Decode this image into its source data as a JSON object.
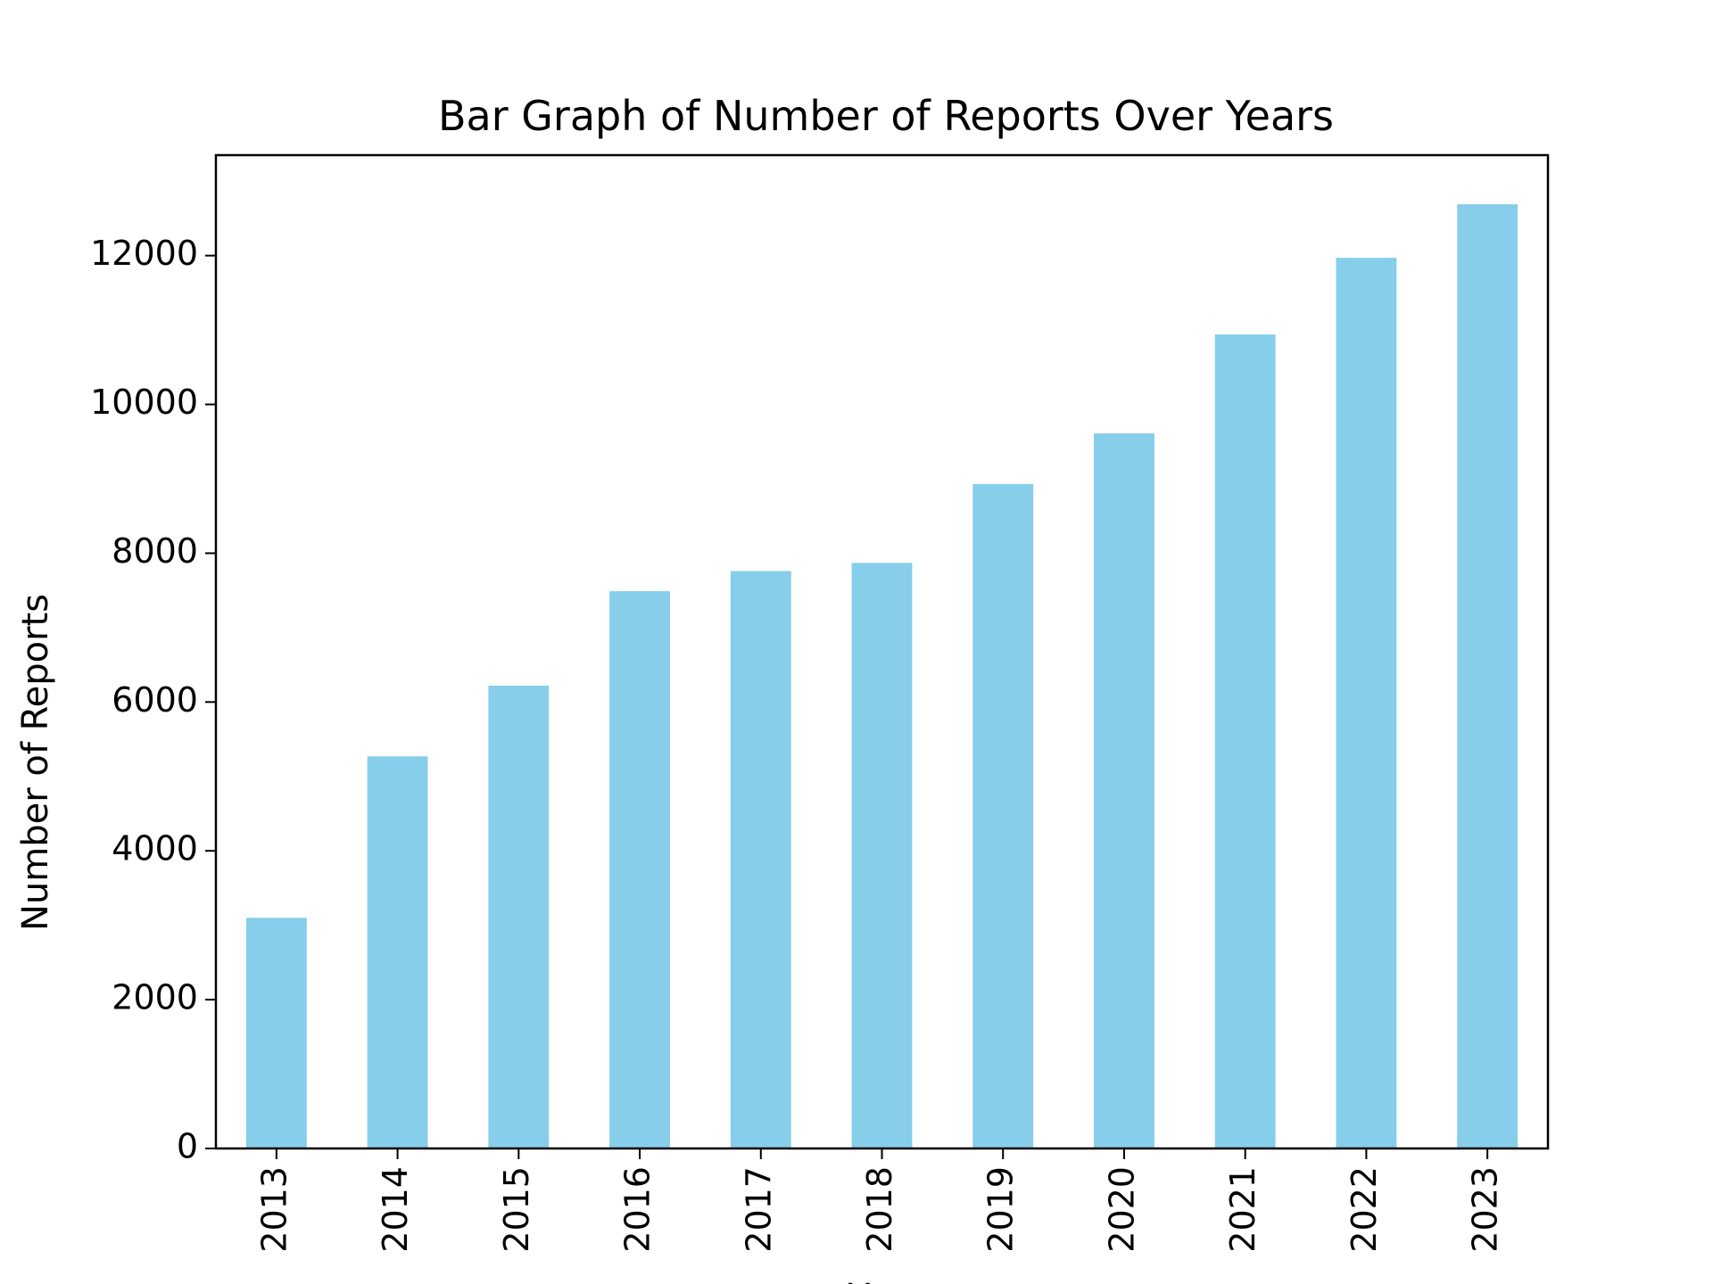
{
  "chart_data": {
    "type": "bar",
    "title": "Bar Graph of Number of Reports Over Years",
    "xlabel": "Year",
    "ylabel": "Number of Reports",
    "categories": [
      "2013",
      "2014",
      "2015",
      "2016",
      "2017",
      "2018",
      "2019",
      "2020",
      "2021",
      "2022",
      "2023"
    ],
    "values": [
      3100,
      5270,
      6220,
      7490,
      7760,
      7870,
      8930,
      9610,
      10940,
      11970,
      12690
    ],
    "ylim": [
      0,
      13350
    ],
    "yticks": [
      0,
      2000,
      4000,
      6000,
      8000,
      10000,
      12000
    ],
    "ytick_labels": [
      "0",
      "2000",
      "4000",
      "6000",
      "8000",
      "10000",
      "12000"
    ],
    "xtick_rotation": "vertical",
    "grid": false,
    "legend": false,
    "bar_color": "#87CEEB",
    "axis_color": "#000000",
    "background_color": "#FFFFFF"
  }
}
